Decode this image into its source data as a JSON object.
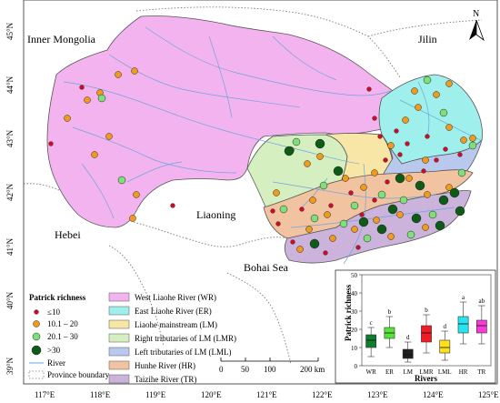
{
  "map": {
    "region_labels": {
      "inner_mongolia": "Inner Mongolia",
      "jilin": "Jilin",
      "hebei": "Hebei",
      "liaoning": "Liaoning",
      "bohai_sea": "Bohai Sea"
    },
    "north_arrow": "N",
    "lat_ticks": [
      "45°N",
      "44°N",
      "43°N",
      "42°N",
      "41°N",
      "40°N",
      "39°N"
    ],
    "lon_ticks": [
      "117°E",
      "118°E",
      "119°E",
      "120°E",
      "121°E",
      "122°E",
      "123°E",
      "124°E",
      "125°E"
    ],
    "scale_bar": {
      "labels": [
        "0",
        "50",
        "100",
        "200 km"
      ]
    },
    "colors": {
      "WR": "#f3b3ee",
      "ER": "#9ff0ec",
      "LM": "#f8e6a6",
      "LMR": "#d6efc1",
      "LML": "#b9c9ee",
      "HR": "#f2c3a1",
      "TR": "#cbb3dc"
    }
  },
  "legend_points": {
    "title": "Patrick richness",
    "items": [
      {
        "label": "≤10",
        "color": "#c2112b"
      },
      {
        "label": "10.1 – 20",
        "color": "#f39b16"
      },
      {
        "label": "20.1 – 30",
        "color": "#7fe07a"
      },
      {
        "label": ">30",
        "color": "#0d5b16"
      }
    ],
    "river": "River",
    "province_boundary": "Province boundary"
  },
  "legend_rivers": [
    {
      "label": "West Liaohe River (WR)",
      "color": "#f3b3ee"
    },
    {
      "label": "East Liaohe River (ER)",
      "color": "#9ff0ec"
    },
    {
      "label": "Liaohe mainstream (LM)",
      "color": "#f8e6a6"
    },
    {
      "label": "Right tributaries of LM (LMR)",
      "color": "#d6efc1"
    },
    {
      "label": "Left tributaries of LM (LML)",
      "color": "#b9c9ee"
    },
    {
      "label": "Hunhe River (HR)",
      "color": "#f2c3a1"
    },
    {
      "label": "Taizihe River (TR)",
      "color": "#cbb3dc"
    }
  ],
  "chart_data": {
    "type": "box",
    "xlabel": "Rivers",
    "ylabel": "Patrick richness",
    "ylim": [
      0,
      50
    ],
    "yticks": [
      0,
      10,
      20,
      30,
      40,
      50
    ],
    "categories": [
      "WR",
      "ER",
      "LM",
      "LMR",
      "LML",
      "HR",
      "TR"
    ],
    "letters": [
      "c",
      "b",
      "d",
      "b",
      "d",
      "a",
      "ab"
    ],
    "colors": [
      "#0f7d2d",
      "#58e33a",
      "#1f1f1f",
      "#f01b24",
      "#ffe11a",
      "#27e4f1",
      "#f73ad8"
    ],
    "boxes": [
      {
        "min": 5,
        "q1": 10,
        "median": 14,
        "q3": 17,
        "max": 21
      },
      {
        "min": 10,
        "q1": 15,
        "median": 18,
        "q3": 21,
        "max": 27
      },
      {
        "min": 2,
        "q1": 4,
        "median": 6,
        "q3": 9,
        "max": 13
      },
      {
        "min": 7,
        "q1": 13,
        "median": 18,
        "q3": 22,
        "max": 28
      },
      {
        "min": 3,
        "q1": 7,
        "median": 10,
        "q3": 14,
        "max": 19
      },
      {
        "min": 12,
        "q1": 18,
        "median": 23,
        "q3": 27,
        "max": 35
      },
      {
        "min": 12,
        "q1": 18,
        "median": 22,
        "q3": 25,
        "max": 33
      }
    ]
  }
}
